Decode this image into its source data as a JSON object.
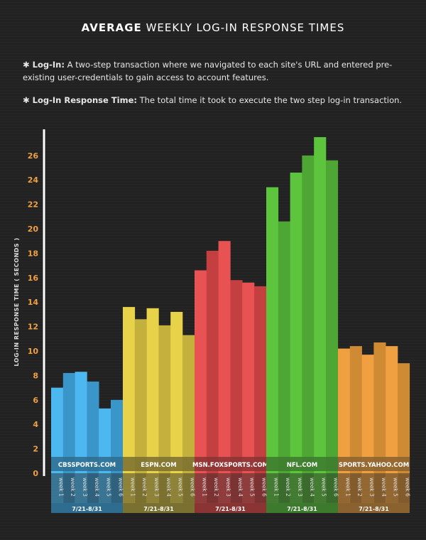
{
  "header": {
    "title_bold": "AVERAGE",
    "title_rest": "WEEKLY LOG-IN RESPONSE TIMES"
  },
  "definitions": [
    {
      "term": "Log-In:",
      "text": "A two-step transaction where we navigated to each site's URL and entered pre-existing user-credentials to gain access to account features."
    },
    {
      "term": "Log-In Response Time:",
      "text": "The total time it took to execute the two step log-in transaction."
    }
  ],
  "chart_data": {
    "type": "bar",
    "title": "AVERAGE WEEKLY LOG-IN RESPONSE TIMES",
    "ylabel": "LOG-IN RESPONSE TIME ( SECONDS )",
    "xlabel": "",
    "ylim": [
      0,
      28
    ],
    "yticks": [
      0,
      2,
      4,
      6,
      8,
      10,
      12,
      14,
      16,
      18,
      20,
      22,
      24,
      26
    ],
    "week_labels": [
      "week 1",
      "week 2",
      "week 3",
      "week 4",
      "week 5",
      "week 6"
    ],
    "date_range": "7/21-8/31",
    "groups": [
      {
        "name": "CBSSPORTS.COM",
        "color": "#4db8f0",
        "light": "#5cc4f8",
        "dark": "#3a95c8",
        "label_bg": "#2f6d90",
        "values": [
          7.0,
          8.2,
          8.3,
          7.5,
          5.3,
          6.0
        ]
      },
      {
        "name": "ESPN.COM",
        "color": "#e8d24a",
        "light": "#f5df58",
        "dark": "#c4b03c",
        "label_bg": "#7a7030",
        "values": [
          13.6,
          12.6,
          13.5,
          12.1,
          13.2,
          11.3
        ]
      },
      {
        "name": "MSN.FOXSPORTS.COM",
        "color": "#e85252",
        "light": "#f25a5a",
        "dark": "#c44040",
        "label_bg": "#8a3434",
        "values": [
          16.6,
          18.2,
          19.0,
          15.8,
          15.6,
          15.3
        ]
      },
      {
        "name": "NFL.COM",
        "color": "#5dc43e",
        "light": "#66d044",
        "dark": "#4ea634",
        "label_bg": "#3d7a2e",
        "values": [
          23.4,
          20.6,
          24.6,
          26.0,
          27.5,
          25.6
        ]
      },
      {
        "name": "SPORTS.YAHOO.COM",
        "color": "#f0a040",
        "light": "#f7aa48",
        "dark": "#cf8a34",
        "label_bg": "#8a6230",
        "values": [
          10.2,
          10.4,
          9.7,
          10.7,
          10.4,
          9.0
        ]
      }
    ]
  }
}
